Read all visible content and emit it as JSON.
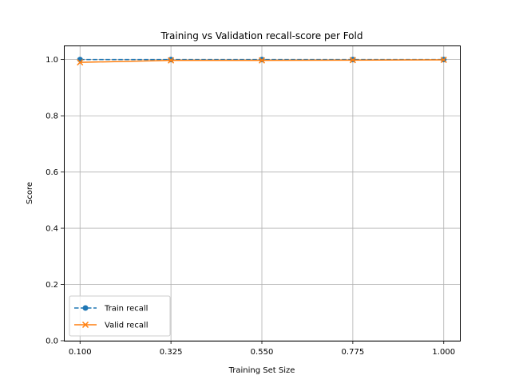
{
  "chart_data": {
    "type": "line",
    "title": "Training vs Validation recall-score per Fold",
    "xlabel": "Training Set Size",
    "ylabel": "Score",
    "x": [
      0.1,
      0.325,
      0.55,
      0.775,
      1.0
    ],
    "x_tick_labels": [
      "0.100",
      "0.325",
      "0.550",
      "0.775",
      "1.000"
    ],
    "y_ticks": [
      0.0,
      0.2,
      0.4,
      0.6,
      0.8,
      1.0
    ],
    "y_tick_labels": [
      "0.0",
      "0.2",
      "0.4",
      "0.6",
      "0.8",
      "1.0"
    ],
    "ylim": [
      0.0,
      1.05
    ],
    "grid": true,
    "legend_position": "lower-left",
    "series": [
      {
        "name": "Train recall",
        "values": [
          1.0,
          1.0,
          1.0,
          1.0,
          1.0
        ],
        "color": "#1f77b4",
        "linestyle": "dashed",
        "marker": "circle"
      },
      {
        "name": "Valid recall",
        "values": [
          0.99,
          0.997,
          0.997,
          0.998,
          0.999
        ],
        "color": "#ff7f0e",
        "linestyle": "solid",
        "marker": "x"
      }
    ]
  }
}
